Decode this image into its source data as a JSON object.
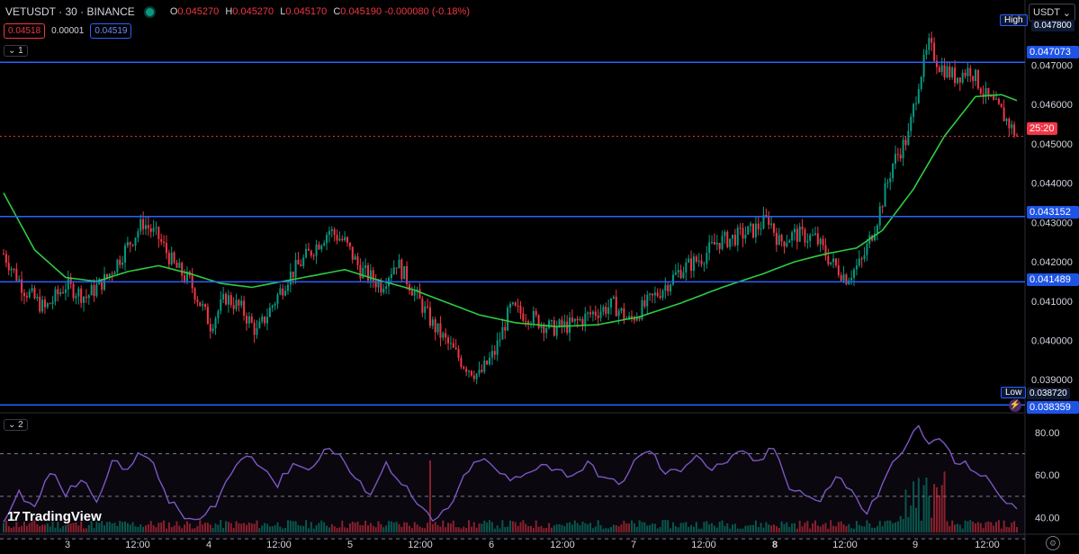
{
  "header": {
    "symbol": "VETUSDT · 30 · BINANCE",
    "ohlc": {
      "o_label": "O",
      "o": "0.045270",
      "h_label": "H",
      "h": "0.045270",
      "l_label": "L",
      "l": "0.045170",
      "c_label": "C",
      "c": "0.045190",
      "change": "-0.000080 (-0.18%)"
    },
    "bid": "0.04518",
    "spread": "0.00001",
    "ask": "0.04519",
    "pane1_label": "1",
    "pane2_label": "2",
    "currency": "USDT"
  },
  "colors": {
    "bg": "#000000",
    "up": "#089981",
    "down": "#f23645",
    "ma": "#2ecc40",
    "hline": "#2962ff",
    "rsi": "#7e57c2"
  },
  "price_axis": {
    "ticks": [
      "0.047000",
      "0.046000",
      "0.045000",
      "0.044000",
      "0.043000",
      "0.042000",
      "0.041000",
      "0.040000",
      "0.039000"
    ],
    "high_label": "High",
    "high_value": "0.047800",
    "low_label": "Low",
    "low_value": "0.038720",
    "last_price": "0.045190",
    "countdown": "25:20",
    "lines": [
      {
        "value": "0.047073",
        "price": 0.047073
      },
      {
        "value": "0.043152",
        "price": 0.043152
      },
      {
        "value": "0.041489",
        "price": 0.041489
      },
      {
        "value": "0.038359",
        "price": 0.038359
      }
    ]
  },
  "time_axis": {
    "labels": [
      "3",
      "12:00",
      "4",
      "12:00",
      "5",
      "12:00",
      "6",
      "12:00",
      "7",
      "12:00",
      "8",
      "12:00",
      "9",
      "12:00"
    ]
  },
  "rsi_axis": {
    "ticks": [
      "80.00",
      "60.00",
      "40.00"
    ]
  },
  "branding": {
    "logo_text": "TradingView",
    "logo_mark": "17"
  },
  "icons": {
    "settings": "gear-icon",
    "alert": "bolt-icon",
    "dropdown": "chevron-down-icon"
  },
  "chart_data": {
    "type": "candlestick",
    "title": "",
    "y_range": [
      0.03825,
      0.0482
    ],
    "x_labels": [
      "3",
      "12:00",
      "4",
      "12:00",
      "5",
      "12:00",
      "6",
      "12:00",
      "7",
      "12:00",
      "8",
      "12:00",
      "9",
      "12:00"
    ],
    "close_path": [
      [
        0,
        0.0422
      ],
      [
        8,
        0.0413
      ],
      [
        16,
        0.0408
      ],
      [
        24,
        0.0414
      ],
      [
        32,
        0.0411
      ],
      [
        40,
        0.0416
      ],
      [
        48,
        0.0424
      ],
      [
        54,
        0.043
      ],
      [
        60,
        0.0426
      ],
      [
        66,
        0.0419
      ],
      [
        72,
        0.0415
      ],
      [
        80,
        0.0404
      ],
      [
        86,
        0.0411
      ],
      [
        92,
        0.0408
      ],
      [
        98,
        0.0402
      ],
      [
        104,
        0.0409
      ],
      [
        110,
        0.0416
      ],
      [
        118,
        0.0422
      ],
      [
        126,
        0.0428
      ],
      [
        132,
        0.0425
      ],
      [
        138,
        0.0418
      ],
      [
        146,
        0.0414
      ],
      [
        152,
        0.042
      ],
      [
        160,
        0.0411
      ],
      [
        166,
        0.0404
      ],
      [
        172,
        0.0399
      ],
      [
        178,
        0.0394
      ],
      [
        184,
        0.0391
      ],
      [
        190,
        0.0397
      ],
      [
        196,
        0.0408
      ],
      [
        204,
        0.0406
      ],
      [
        212,
        0.0403
      ],
      [
        220,
        0.0404
      ],
      [
        228,
        0.0407
      ],
      [
        236,
        0.0409
      ],
      [
        242,
        0.0405
      ],
      [
        250,
        0.041
      ],
      [
        256,
        0.0414
      ],
      [
        262,
        0.0418
      ],
      [
        270,
        0.0421
      ],
      [
        276,
        0.0425
      ],
      [
        282,
        0.0426
      ],
      [
        290,
        0.0428
      ],
      [
        296,
        0.0431
      ],
      [
        300,
        0.0425
      ],
      [
        306,
        0.0427
      ],
      [
        314,
        0.0426
      ],
      [
        320,
        0.042
      ],
      [
        326,
        0.0416
      ],
      [
        332,
        0.042
      ],
      [
        338,
        0.0431
      ],
      [
        344,
        0.0445
      ],
      [
        350,
        0.0452
      ],
      [
        354,
        0.0466
      ],
      [
        358,
        0.0475
      ],
      [
        362,
        0.047
      ],
      [
        368,
        0.0467
      ],
      [
        374,
        0.0469
      ],
      [
        380,
        0.0462
      ],
      [
        386,
        0.0458
      ],
      [
        392,
        0.0452
      ]
    ],
    "ma_path": [
      [
        0,
        0.04375
      ],
      [
        12,
        0.0423
      ],
      [
        24,
        0.0416
      ],
      [
        36,
        0.0415
      ],
      [
        48,
        0.04175
      ],
      [
        60,
        0.0419
      ],
      [
        72,
        0.0417
      ],
      [
        84,
        0.04145
      ],
      [
        96,
        0.04135
      ],
      [
        108,
        0.0415
      ],
      [
        120,
        0.04165
      ],
      [
        132,
        0.0418
      ],
      [
        144,
        0.04155
      ],
      [
        158,
        0.0413
      ],
      [
        170,
        0.041
      ],
      [
        184,
        0.04065
      ],
      [
        198,
        0.04045
      ],
      [
        214,
        0.04035
      ],
      [
        230,
        0.0404
      ],
      [
        246,
        0.0406
      ],
      [
        262,
        0.04095
      ],
      [
        278,
        0.04135
      ],
      [
        294,
        0.0417
      ],
      [
        306,
        0.042
      ],
      [
        318,
        0.0422
      ],
      [
        330,
        0.04235
      ],
      [
        340,
        0.0428
      ],
      [
        352,
        0.04385
      ],
      [
        364,
        0.0452
      ],
      [
        376,
        0.0462
      ],
      [
        386,
        0.04625
      ],
      [
        392,
        0.0461
      ]
    ],
    "rsi_path": [
      [
        0,
        38
      ],
      [
        6,
        52
      ],
      [
        12,
        44
      ],
      [
        18,
        62
      ],
      [
        24,
        51
      ],
      [
        30,
        58
      ],
      [
        36,
        49
      ],
      [
        42,
        66
      ],
      [
        48,
        62
      ],
      [
        52,
        72
      ],
      [
        58,
        64
      ],
      [
        64,
        48
      ],
      [
        70,
        40
      ],
      [
        76,
        38
      ],
      [
        82,
        47
      ],
      [
        88,
        61
      ],
      [
        94,
        70
      ],
      [
        100,
        65
      ],
      [
        106,
        55
      ],
      [
        112,
        66
      ],
      [
        118,
        62
      ],
      [
        124,
        72
      ],
      [
        130,
        70
      ],
      [
        136,
        57
      ],
      [
        142,
        52
      ],
      [
        148,
        65
      ],
      [
        154,
        57
      ],
      [
        160,
        46
      ],
      [
        166,
        38
      ],
      [
        172,
        44
      ],
      [
        178,
        58
      ],
      [
        184,
        68
      ],
      [
        190,
        63
      ],
      [
        196,
        57
      ],
      [
        202,
        60
      ],
      [
        208,
        66
      ],
      [
        214,
        62
      ],
      [
        220,
        60
      ],
      [
        226,
        65
      ],
      [
        232,
        59
      ],
      [
        238,
        55
      ],
      [
        244,
        66
      ],
      [
        250,
        72
      ],
      [
        256,
        60
      ],
      [
        262,
        63
      ],
      [
        268,
        70
      ],
      [
        274,
        62
      ],
      [
        280,
        67
      ],
      [
        286,
        70
      ],
      [
        292,
        66
      ],
      [
        298,
        73
      ],
      [
        304,
        55
      ],
      [
        310,
        51
      ],
      [
        316,
        47
      ],
      [
        322,
        60
      ],
      [
        328,
        52
      ],
      [
        334,
        42
      ],
      [
        340,
        55
      ],
      [
        346,
        70
      ],
      [
        350,
        76
      ],
      [
        354,
        82
      ],
      [
        358,
        74
      ],
      [
        362,
        78
      ],
      [
        368,
        66
      ],
      [
        374,
        64
      ],
      [
        380,
        58
      ],
      [
        386,
        50
      ],
      [
        392,
        44
      ]
    ],
    "rsi_range": [
      33,
      88
    ],
    "sma_label": ""
  }
}
